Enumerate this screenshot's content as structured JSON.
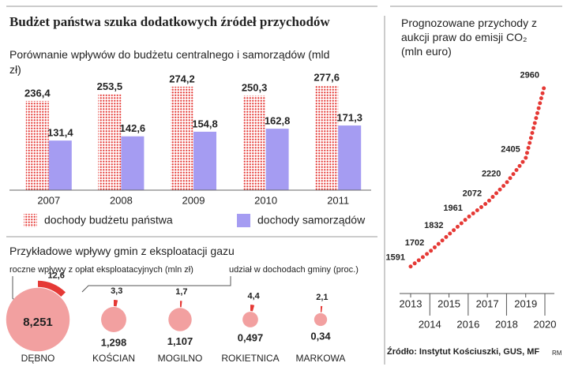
{
  "header": {
    "title": "Budżet państwa szuka dodatkowych źródeł przychodów"
  },
  "chart_data": [
    {
      "type": "bar",
      "subtitle": "Porównanie wpływów do budżetu centralnego i samorządów (mld zł)",
      "categories": [
        "2007",
        "2008",
        "2009",
        "2010",
        "2011"
      ],
      "series": [
        {
          "name": "dochody budżetu państwa",
          "color": "#e53935",
          "values": [
            236.4,
            253.5,
            274.2,
            250.3,
            277.6
          ],
          "value_labels": [
            "236,4",
            "253,5",
            "274,2",
            "250,3",
            "277,6"
          ]
        },
        {
          "name": "dochody samorządów",
          "color": "#a59cf2",
          "values": [
            131.4,
            142.6,
            154.8,
            162.8,
            171.3
          ],
          "value_labels": [
            "131,4",
            "142,6",
            "154,8",
            "162,8",
            "171,3"
          ]
        }
      ],
      "ylim": [
        0,
        300
      ]
    },
    {
      "type": "line",
      "title": "Prognozowane przychody z aukcji praw do emisji CO₂ (mln euro)",
      "x": [
        2013,
        2014,
        2015,
        2016,
        2017,
        2018,
        2019,
        2020
      ],
      "values": [
        1591,
        1702,
        1832,
        1961,
        2072,
        2220,
        2405,
        2960
      ],
      "color": "#e53935",
      "xlim": [
        2013,
        2020
      ],
      "xticks": [
        2013,
        2014,
        2015,
        2016,
        2017,
        2018,
        2019,
        2020
      ],
      "ylim": [
        1400,
        3000
      ]
    },
    {
      "type": "bubble",
      "title": "Przykładowe wpływy gmin z eksploatacji gazu",
      "categories": [
        "DĘBNO",
        "KOŚCIAN",
        "MOGILNO",
        "ROKIETNICA",
        "MARKOWA"
      ],
      "series": [
        {
          "name": "roczne wpływy z opłat eksploatacyjnych (mln zł)",
          "color": "#f2a0a0",
          "values": [
            8.251,
            1.298,
            1.107,
            0.497,
            0.34
          ],
          "value_labels": [
            "8,251",
            "1,298",
            "1,107",
            "0,497",
            "0,34"
          ]
        },
        {
          "name": "udział w dochodach gminy (proc.)",
          "color": "#e53935",
          "values": [
            12.6,
            3.3,
            1.7,
            4.4,
            2.1
          ],
          "value_labels": [
            "12,6",
            "3,3",
            "1,7",
            "4,4",
            "2,1"
          ]
        }
      ]
    }
  ],
  "source": "Źródło: Instytut Kościuszki, GUS, MF",
  "credit": "RM"
}
